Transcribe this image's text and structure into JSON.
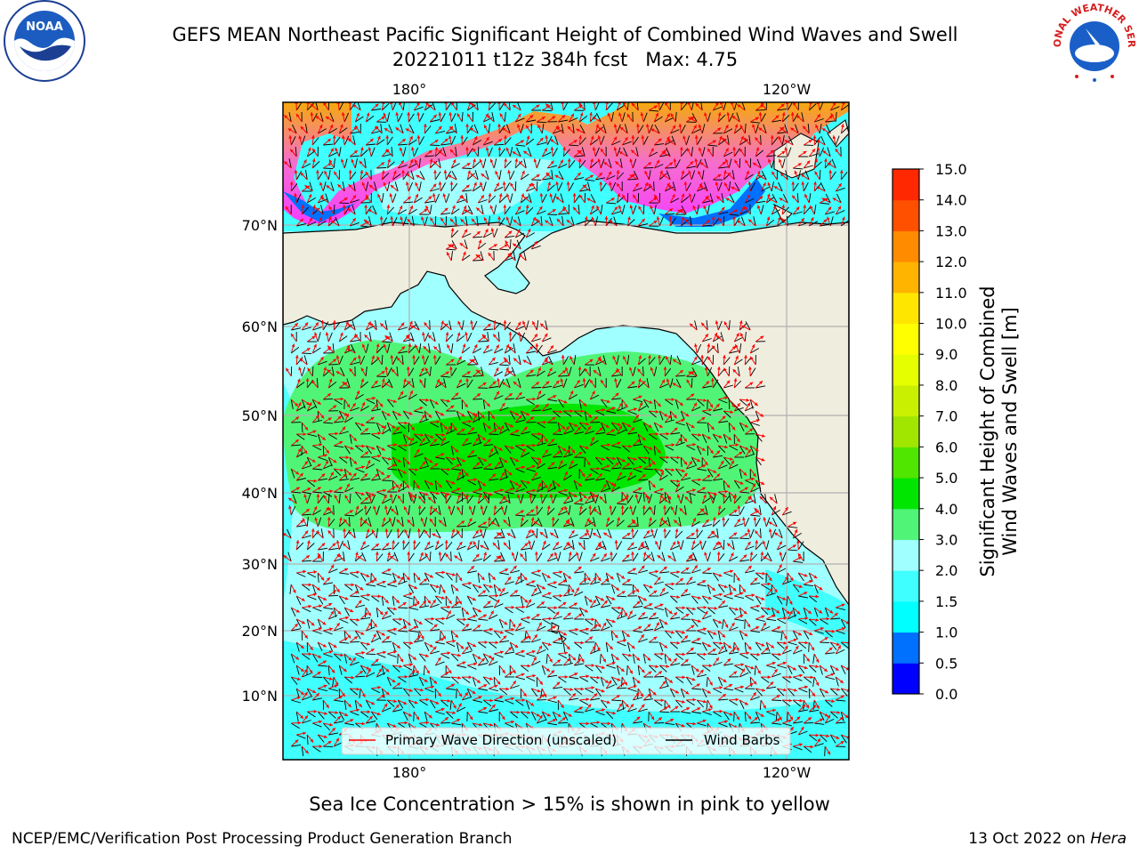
{
  "title": {
    "line1": "GEFS MEAN Northeast Pacific Significant Height of Combined Wind Waves and Swell",
    "line2": "20221011 t12z 384h fcst   Max: 4.75"
  },
  "logos": {
    "left": {
      "name": "noaa-logo",
      "text": "NOAA"
    },
    "right": {
      "name": "nws-logo",
      "text": "NATIONAL WEATHER SERVICE"
    }
  },
  "map": {
    "lon_ticks_top": [
      "180°",
      "120°W"
    ],
    "lon_ticks_bottom": [
      "180°",
      "120°W"
    ],
    "lat_ticks": [
      "70°N",
      "60°N",
      "50°N",
      "40°N",
      "30°N",
      "20°N",
      "10°N"
    ],
    "land_color": "#efedde",
    "legend": {
      "wave": "Primary Wave Direction (unscaled)",
      "barb": "Wind Barbs"
    }
  },
  "colorbar": {
    "title_line1": "Significant Height of Combined",
    "title_line2": "Wind Waves and Swell [m]",
    "labels": [
      "0.0",
      "0.5",
      "1.0",
      "1.5",
      "2.0",
      "3.0",
      "4.0",
      "5.0",
      "6.0",
      "7.0",
      "8.0",
      "9.0",
      "10.0",
      "11.0",
      "12.0",
      "13.0",
      "14.0",
      "15.0"
    ],
    "colors": [
      "#0000ff",
      "#0070ff",
      "#00ffff",
      "#40ffff",
      "#a0ffff",
      "#50f578",
      "#00e600",
      "#50e600",
      "#a0e600",
      "#c8f000",
      "#e6ff00",
      "#ffff00",
      "#ffe600",
      "#ffb400",
      "#ff8c00",
      "#ff5000",
      "#ff2800"
    ]
  },
  "caption": "Sea Ice Concentration > 15% is shown in pink to yellow",
  "footer": {
    "left": "NCEP/EMC/Verification Post Processing Product Generation Branch",
    "right_prefix": "13 Oct 2022 on ",
    "right_host": "Hera"
  }
}
